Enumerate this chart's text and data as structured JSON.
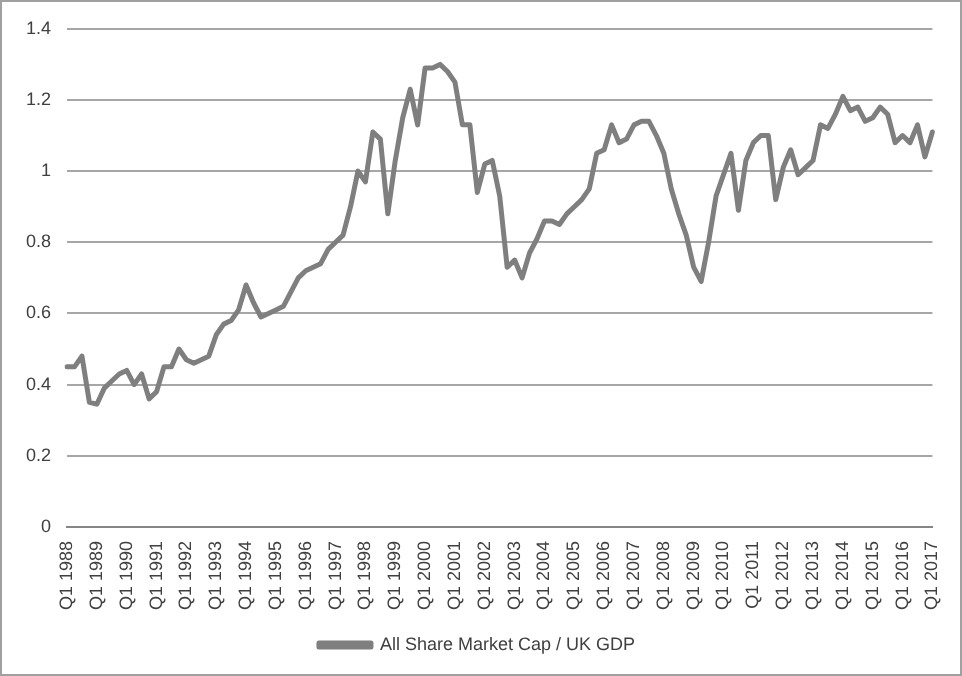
{
  "chart_data": {
    "type": "line",
    "categories": [
      "Q1 1988",
      null,
      null,
      null,
      "Q1 1989",
      null,
      null,
      null,
      "Q1 1990",
      null,
      null,
      null,
      "Q1 1991",
      null,
      null,
      null,
      "Q1 1992",
      null,
      null,
      null,
      "Q1 1993",
      null,
      null,
      null,
      "Q1 1994",
      null,
      null,
      null,
      "Q1 1995",
      null,
      null,
      null,
      "Q1 1996",
      null,
      null,
      null,
      "Q1 1997",
      null,
      null,
      null,
      "Q1 1998",
      null,
      null,
      null,
      "Q1 1999",
      null,
      null,
      null,
      "Q1 2000",
      null,
      null,
      null,
      "Q1 2001",
      null,
      null,
      null,
      "Q1 2002",
      null,
      null,
      null,
      "Q1 2003",
      null,
      null,
      null,
      "Q1 2004",
      null,
      null,
      null,
      "Q1 2005",
      null,
      null,
      null,
      "Q1 2006",
      null,
      null,
      null,
      "Q1 2007",
      null,
      null,
      null,
      "Q1 2008",
      null,
      null,
      null,
      "Q1 2009",
      null,
      null,
      null,
      "Q1 2010",
      null,
      null,
      null,
      "Q1 2011",
      null,
      null,
      null,
      "Q1 2012",
      null,
      null,
      null,
      "Q1 2013",
      null,
      null,
      null,
      "Q1 2014",
      null,
      null,
      null,
      "Q1 2015",
      null,
      null,
      null,
      "Q1 2016",
      null,
      null,
      null,
      "Q1 2017"
    ],
    "series": [
      {
        "name": "All Share Market Cap / UK GDP",
        "color": "#7f7f7f",
        "values": [
          0.45,
          0.45,
          0.48,
          0.35,
          0.345,
          0.39,
          0.41,
          0.43,
          0.44,
          0.4,
          0.43,
          0.36,
          0.38,
          0.45,
          0.45,
          0.5,
          0.47,
          0.46,
          0.47,
          0.48,
          0.54,
          0.57,
          0.58,
          0.61,
          0.68,
          0.63,
          0.59,
          0.6,
          0.61,
          0.62,
          0.66,
          0.7,
          0.72,
          0.73,
          0.74,
          0.78,
          0.8,
          0.82,
          0.9,
          1.0,
          0.97,
          1.11,
          1.09,
          0.88,
          1.03,
          1.15,
          1.23,
          1.13,
          1.29,
          1.29,
          1.3,
          1.28,
          1.25,
          1.13,
          1.13,
          0.94,
          1.02,
          1.03,
          0.93,
          0.73,
          0.75,
          0.7,
          0.77,
          0.81,
          0.86,
          0.86,
          0.85,
          0.88,
          0.9,
          0.92,
          0.95,
          1.05,
          1.06,
          1.13,
          1.08,
          1.09,
          1.13,
          1.14,
          1.14,
          1.1,
          1.05,
          0.95,
          0.88,
          0.82,
          0.73,
          0.69,
          0.8,
          0.93,
          0.99,
          1.05,
          0.89,
          1.03,
          1.08,
          1.1,
          1.1,
          0.92,
          1.01,
          1.06,
          0.99,
          1.01,
          1.03,
          1.13,
          1.12,
          1.16,
          1.21,
          1.17,
          1.18,
          1.14,
          1.15,
          1.18,
          1.16,
          1.08,
          1.1,
          1.08,
          1.13,
          1.04,
          1.11
        ]
      }
    ],
    "ylim": [
      0,
      1.4
    ],
    "yticks": [
      0,
      0.2,
      0.4,
      0.6,
      0.8,
      1,
      1.2,
      1.4
    ],
    "grid": "y",
    "legend": "bottom",
    "marker": "none",
    "line_style": "solid"
  }
}
